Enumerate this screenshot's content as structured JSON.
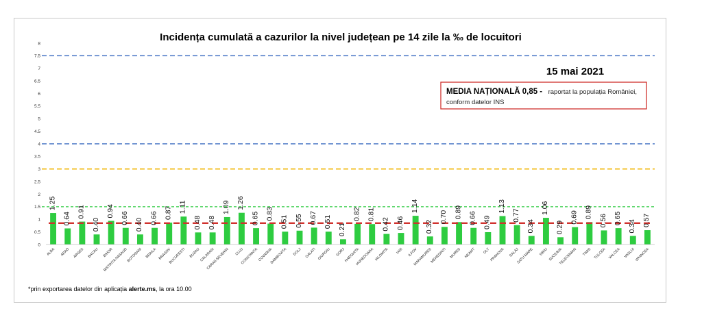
{
  "chart_data": {
    "type": "bar",
    "title": "Incidența cumulată a cazurilor la nivel județean pe 14 zile la ‰ de locuitori",
    "date": "15 mai 2021",
    "ylim": [
      0,
      8
    ],
    "yticks": [
      "0",
      "0.5",
      "1",
      "1.5",
      "2",
      "2.5",
      "3",
      "3.5",
      "4",
      "4.5",
      "5",
      "5.5",
      "6",
      "6.5",
      "7",
      "7.5",
      "8"
    ],
    "grid": false,
    "bar_color": "#2ecc40",
    "categories": [
      "ALBA",
      "ARAD",
      "ARGES",
      "BACAU",
      "BIHOR",
      "BISTRITA NASAUD",
      "BOTOSANI",
      "BRAILA",
      "BRASOV",
      "BUCURESTI",
      "BUZAU",
      "CALARASI",
      "CARAS-SEVERIN",
      "CLUJ",
      "CONSTANTA",
      "COVASNA",
      "DAMBOVITA",
      "DOLJ",
      "GALATI",
      "GIURGIU",
      "GORJ",
      "HARGHITA",
      "HUNEDOARA",
      "IALOMITA",
      "IASI",
      "ILFOV",
      "MARAMURES",
      "MEHEDINTI",
      "MURES",
      "NEAMT",
      "OLT",
      "PRAHOVA",
      "SALAJ",
      "SATU MARE",
      "SIBIU",
      "SUCEAVA",
      "TELEORMAN",
      "TIMIS",
      "TULCEA",
      "VALCEA",
      "VASLUI",
      "VRANCEA"
    ],
    "values": [
      1.25,
      0.64,
      0.91,
      0.4,
      0.94,
      0.66,
      0.4,
      0.66,
      0.87,
      1.11,
      0.48,
      0.48,
      1.09,
      1.26,
      0.65,
      0.83,
      0.51,
      0.55,
      0.67,
      0.51,
      0.21,
      0.82,
      0.81,
      0.42,
      0.46,
      1.14,
      0.32,
      0.7,
      0.89,
      0.66,
      0.49,
      1.13,
      0.77,
      0.34,
      1.06,
      0.29,
      0.69,
      0.89,
      0.56,
      0.65,
      0.34,
      0.57
    ],
    "value_labels": [
      "1.25",
      "0.64",
      "0.91",
      "0.40",
      "0.94",
      "0.66",
      "0.40",
      "0.66",
      "0.87",
      "1.11",
      "0.48",
      "0.48",
      "1.09",
      "1.26",
      "0.65",
      "0.83",
      "0.51",
      "0.55",
      "0.67",
      "0.51",
      "0.21",
      "0.82",
      "0.81",
      "0.42",
      "0.46",
      "1.14",
      "0.32",
      "0.70",
      "0.89",
      "0.66",
      "0.49",
      "1.13",
      "0.77",
      "0.34",
      "1.06",
      "0.29",
      "0.69",
      "0.89",
      "0.56",
      "0.65",
      "0.34",
      "0.57"
    ],
    "reference_lines": [
      {
        "value": 7.5,
        "color": "#4472c4"
      },
      {
        "value": 4.0,
        "color": "#4472c4"
      },
      {
        "value": 3.0,
        "color": "#f0b400"
      },
      {
        "value": 1.5,
        "color": "#2ecc40"
      },
      {
        "value": 0.85,
        "color": "#d0312d"
      }
    ],
    "annotation": {
      "bold": "MEDIA NAȚIONALĂ  0,85 -",
      "rest_line1": "raportat la populația României,",
      "rest_line2": "conform datelor INS",
      "border_color": "#d0312d"
    }
  },
  "footnote": {
    "prefix": "*prin exportarea datelor din aplicația ",
    "bold": "alerte.ms",
    "suffix": ", la ora 10.00"
  }
}
